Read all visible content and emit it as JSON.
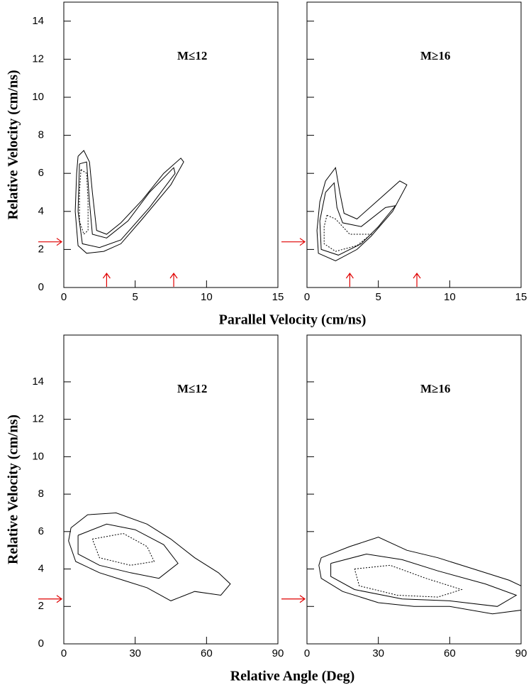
{
  "chart_data": [
    {
      "type": "contour",
      "annotation": "M≤12",
      "ylabel": "Relative Velocity (cm/ns)",
      "xlabel": "Parallel Velocity (cm/ns)",
      "xlim": [
        0,
        15
      ],
      "ylim": [
        0,
        15
      ],
      "xticks": [
        0,
        5,
        10,
        15
      ],
      "yticks": [
        0,
        2,
        4,
        6,
        8,
        10,
        12,
        14
      ],
      "ytick_labels": true,
      "color": "#000000",
      "arrow_color": "#e00000",
      "arrow_x": [
        3,
        7.7
      ],
      "arrow_y": [
        2.4
      ],
      "contours": [
        {
          "style": "solid",
          "x": [
            1.0,
            1.4,
            1.8,
            2.0,
            2.3,
            3.0,
            4.0,
            5.5,
            7.0,
            8.2,
            8.4,
            7.5,
            5.5,
            4.0,
            2.8,
            1.6,
            1.0,
            0.8,
            0.9,
            1.0
          ],
          "y": [
            6.9,
            7.2,
            6.6,
            5.0,
            3.0,
            2.8,
            3.4,
            4.6,
            6.0,
            6.8,
            6.6,
            5.4,
            3.6,
            2.3,
            1.9,
            1.8,
            2.2,
            4.0,
            6.0,
            6.9
          ]
        },
        {
          "style": "solid",
          "x": [
            1.1,
            1.6,
            1.8,
            2.0,
            3.0,
            4.5,
            6.0,
            7.7,
            7.8,
            6.0,
            4.0,
            2.5,
            1.3,
            1.0,
            1.1
          ],
          "y": [
            6.5,
            6.6,
            4.5,
            2.8,
            2.6,
            3.5,
            5.0,
            6.3,
            6.0,
            4.2,
            2.5,
            2.1,
            2.3,
            4.0,
            6.5
          ]
        },
        {
          "style": "dashed",
          "x": [
            1.2,
            1.6,
            1.7,
            1.7,
            1.4,
            1.1,
            1.1,
            1.2
          ],
          "y": [
            6.2,
            6.0,
            4.5,
            3.0,
            2.8,
            3.5,
            5.0,
            6.2
          ]
        }
      ]
    },
    {
      "type": "contour",
      "annotation": "M≥16",
      "xlim": [
        0,
        15
      ],
      "ylim": [
        0,
        15
      ],
      "xticks": [
        0,
        5,
        10,
        15
      ],
      "yticks": [
        0,
        2,
        4,
        6,
        8,
        10,
        12,
        14
      ],
      "ytick_labels": false,
      "color": "#000000",
      "arrow_color": "#e00000",
      "arrow_x": [
        3,
        7.7
      ],
      "arrow_y": [
        2.4
      ],
      "contours": [
        {
          "style": "solid",
          "x": [
            1.3,
            2.0,
            2.3,
            2.6,
            3.5,
            5.0,
            6.5,
            7.0,
            6.0,
            4.5,
            3.5,
            2.0,
            0.8,
            0.7,
            0.9,
            1.3
          ],
          "y": [
            5.6,
            6.3,
            5.0,
            3.9,
            3.6,
            4.6,
            5.6,
            5.4,
            4.0,
            2.7,
            2.0,
            1.4,
            1.8,
            3.0,
            4.5,
            5.6
          ]
        },
        {
          "style": "solid",
          "x": [
            1.3,
            1.9,
            2.1,
            2.5,
            3.8,
            5.5,
            6.2,
            5.0,
            3.8,
            2.2,
            1.0,
            0.9,
            1.3
          ],
          "y": [
            5.0,
            5.5,
            4.2,
            3.4,
            3.2,
            4.2,
            4.3,
            3.2,
            2.3,
            1.7,
            2.0,
            3.5,
            5.0
          ]
        },
        {
          "style": "dashed",
          "x": [
            1.4,
            2.0,
            3.0,
            4.5,
            3.5,
            2.0,
            1.2,
            1.2,
            1.4
          ],
          "y": [
            3.8,
            3.6,
            2.8,
            2.8,
            2.2,
            1.9,
            2.3,
            3.2,
            3.8
          ]
        }
      ]
    },
    {
      "type": "contour",
      "annotation": "M≤12",
      "ylabel": "Relative Velocity (cm/ns)",
      "xlabel": "Relative Angle (Deg)",
      "xlim": [
        0,
        90
      ],
      "ylim": [
        0,
        16.5
      ],
      "xticks": [
        0,
        30,
        60,
        90
      ],
      "yticks": [
        0,
        2,
        4,
        6,
        8,
        10,
        12,
        14
      ],
      "ytick_labels": true,
      "color": "#000000",
      "arrow_color": "#e00000",
      "arrow_y": [
        2.4
      ],
      "contours": [
        {
          "style": "solid",
          "x": [
            3,
            10,
            22,
            35,
            45,
            55,
            65,
            70,
            66,
            55,
            45,
            35,
            25,
            15,
            5,
            2,
            3
          ],
          "y": [
            6.2,
            6.9,
            7.0,
            6.4,
            5.6,
            4.6,
            3.8,
            3.2,
            2.6,
            2.8,
            2.3,
            3.0,
            3.4,
            3.8,
            4.4,
            5.5,
            6.2
          ]
        },
        {
          "style": "solid",
          "x": [
            6,
            18,
            30,
            42,
            48,
            40,
            28,
            15,
            6,
            6
          ],
          "y": [
            5.8,
            6.4,
            6.1,
            5.3,
            4.3,
            3.5,
            3.8,
            4.2,
            4.8,
            5.8
          ]
        },
        {
          "style": "dashed",
          "x": [
            12,
            25,
            35,
            38,
            28,
            15,
            12
          ],
          "y": [
            5.6,
            5.9,
            5.2,
            4.4,
            4.2,
            4.6,
            5.6
          ]
        }
      ]
    },
    {
      "type": "contour",
      "annotation": "M≥16",
      "xlim": [
        0,
        90
      ],
      "ylim": [
        0,
        16.5
      ],
      "xticks": [
        0,
        30,
        60,
        90
      ],
      "yticks": [
        0,
        2,
        4,
        6,
        8,
        10,
        12,
        14
      ],
      "ytick_labels": false,
      "color": "#000000",
      "arrow_color": "#e00000",
      "arrow_y": [
        2.4
      ],
      "contours": [
        {
          "style": "solid",
          "x": [
            6,
            18,
            30,
            42,
            55,
            70,
            85,
            90,
            90,
            78,
            60,
            45,
            30,
            15,
            6,
            5,
            6
          ],
          "y": [
            4.6,
            5.2,
            5.7,
            5.0,
            4.6,
            4.0,
            3.4,
            3.1,
            1.8,
            1.6,
            2.0,
            2.0,
            2.2,
            2.8,
            3.5,
            4.2,
            4.6
          ]
        },
        {
          "style": "solid",
          "x": [
            10,
            25,
            40,
            55,
            75,
            88,
            80,
            60,
            40,
            20,
            10,
            10
          ],
          "y": [
            4.3,
            4.8,
            4.5,
            3.9,
            3.2,
            2.6,
            2.0,
            2.3,
            2.4,
            2.9,
            3.6,
            4.3
          ]
        },
        {
          "style": "dashed",
          "x": [
            20,
            35,
            50,
            65,
            55,
            38,
            22,
            20
          ],
          "y": [
            4.0,
            4.2,
            3.5,
            2.9,
            2.5,
            2.6,
            3.1,
            4.0
          ]
        }
      ]
    }
  ]
}
